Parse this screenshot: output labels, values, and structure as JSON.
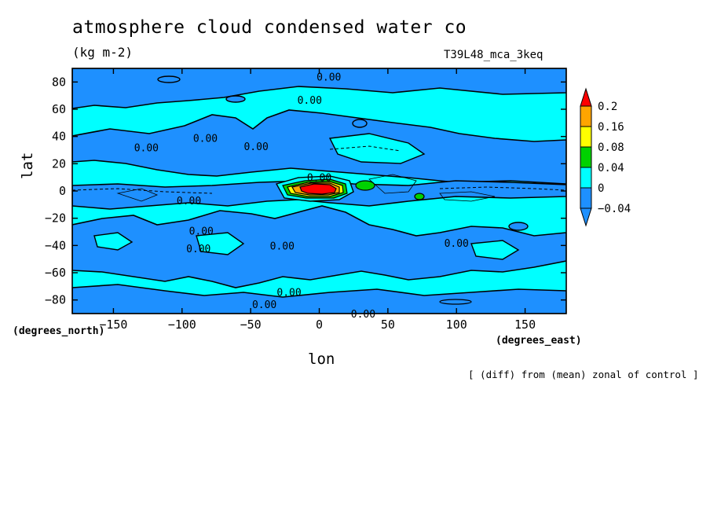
{
  "header": {
    "title": "atmosphere cloud condensed water co",
    "units": "(kg m-2)",
    "run_name": "T39L48_mca_3keq",
    "note": "[ (diff) from (mean) zonal of control ]"
  },
  "chart_data": {
    "type": "heatmap",
    "title": "atmosphere cloud condensed water co",
    "xlabel": "lon",
    "ylabel": "lat",
    "x_units": "(degrees_east)",
    "y_units": "(degrees_north)",
    "xlim": [
      -180,
      180
    ],
    "ylim": [
      -90,
      90
    ],
    "x_ticks": [
      -150,
      -100,
      -50,
      0,
      50,
      100,
      150
    ],
    "y_ticks": [
      -80,
      -60,
      -40,
      -20,
      0,
      20,
      40,
      60,
      80
    ],
    "grid": false,
    "legend_position": "right",
    "colorbar": {
      "levels": [
        "0.2",
        "0.16",
        "0.08",
        "0.04",
        "0",
        "-0.04"
      ],
      "bands": [
        {
          "range": "> 0.2",
          "color": "#ff0000"
        },
        {
          "range": "0.16 – 0.2",
          "color": "#ffa500"
        },
        {
          "range": "0.08 – 0.16",
          "color": "#ffff00"
        },
        {
          "range": "0.04 – 0.08",
          "color": "#00d200"
        },
        {
          "range": "0 – 0.04",
          "color": "#00ffff"
        },
        {
          "range": "-0.04 – 0",
          "color": "#1e90ff"
        },
        {
          "range": "< -0.04",
          "color": "#1e90ff"
        }
      ]
    },
    "contour_labels": [
      {
        "text": "0.00",
        "lon": 7,
        "lat": 84
      },
      {
        "text": "0.00",
        "lon": -7,
        "lat": 67
      },
      {
        "text": "0.00",
        "lon": -126,
        "lat": 32
      },
      {
        "text": "0.00",
        "lon": -83,
        "lat": 39
      },
      {
        "text": "0.00",
        "lon": -46,
        "lat": 33
      },
      {
        "text": "0.00",
        "lon": 0,
        "lat": 10
      },
      {
        "text": "0.00",
        "lon": -95,
        "lat": -7
      },
      {
        "text": "0.00",
        "lon": -86,
        "lat": -29
      },
      {
        "text": "0.00",
        "lon": -27,
        "lat": -40
      },
      {
        "text": "0.00",
        "lon": -88,
        "lat": -42
      },
      {
        "text": "0.00",
        "lon": 100,
        "lat": -38
      },
      {
        "text": "0.00",
        "lon": -22,
        "lat": -74
      },
      {
        "text": "0.00",
        "lon": -40,
        "lat": -83
      },
      {
        "text": "0.00",
        "lon": 32,
        "lat": -90
      }
    ],
    "regions": [
      {
        "description": "positive anomaly core",
        "lon_range": [
          -20,
          15
        ],
        "lat_range": [
          -3,
          4
        ],
        "max_band": "> 0.2"
      },
      {
        "description": "negative anomaly band along equator",
        "lon_range": [
          -180,
          180
        ],
        "lat_range": [
          -6,
          6
        ],
        "band": "-0.04 – 0"
      }
    ]
  },
  "colors": {
    "cyan": "#00ffff",
    "blue": "#1e90ff",
    "green": "#00d200",
    "yellow": "#ffff00",
    "orange": "#ffa500",
    "red": "#ff0000"
  }
}
